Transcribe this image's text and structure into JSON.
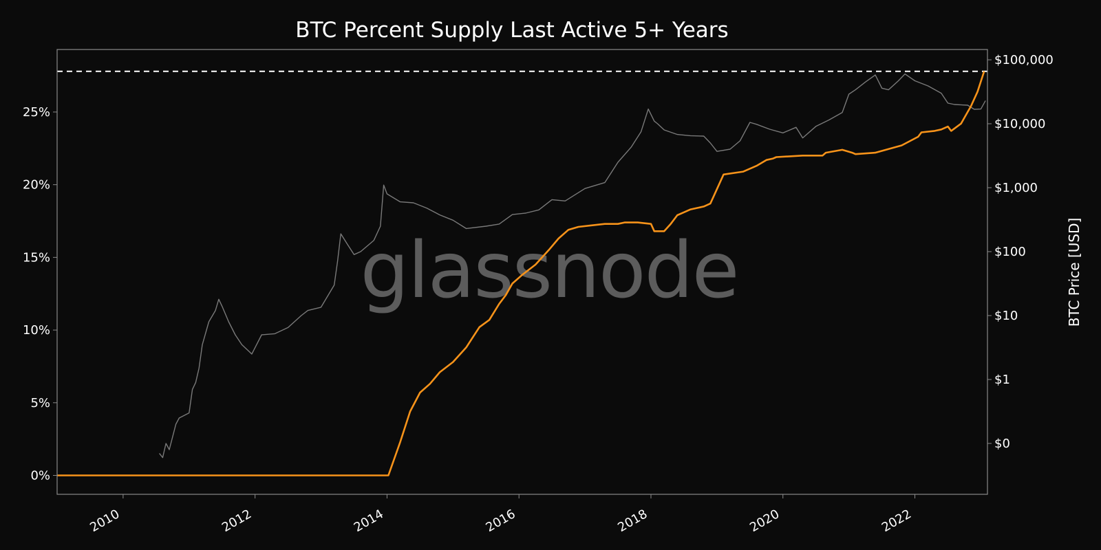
{
  "chart_data": {
    "type": "line",
    "title": "BTC Percent Supply Last Active 5+ Years",
    "xlabel": "",
    "ylabel_left": "",
    "ylabel_right": "BTC Price [USD]",
    "watermark": "glassnode",
    "x_ticks": [
      "2010",
      "2012",
      "2014",
      "2016",
      "2018",
      "2020",
      "2022"
    ],
    "y_left_ticks": [
      "0%",
      "5%",
      "10%",
      "15%",
      "20%",
      "25%"
    ],
    "y_right_ticks": [
      "$0",
      "$1",
      "$10",
      "$100",
      "$1,000",
      "$10,000",
      "$100,000"
    ],
    "y_left_range": [
      -1.3,
      29.3
    ],
    "y_right_scale": "log",
    "x_range": [
      2009.0,
      2023.1
    ],
    "grid": false,
    "series": [
      {
        "name": "",
        "axis": "left",
        "color": "#f7931a",
        "x": [
          2009.0,
          2014.02,
          2014.2,
          2014.35,
          2014.5,
          2014.65,
          2014.8,
          2015.0,
          2015.2,
          2015.3,
          2015.4,
          2015.55,
          2015.7,
          2015.8,
          2015.9,
          2016.05,
          2016.25,
          2016.45,
          2016.6,
          2016.75,
          2016.9,
          2017.1,
          2017.3,
          2017.5,
          2017.6,
          2017.8,
          2018.0,
          2018.05,
          2018.2,
          2018.3,
          2018.4,
          2018.5,
          2018.6,
          2018.7,
          2018.8,
          2018.9,
          2018.95,
          2019.1,
          2019.4,
          2019.6,
          2019.75,
          2019.85,
          2019.9,
          2020.3,
          2020.6,
          2020.65,
          2020.9,
          2021.05,
          2021.1,
          2021.4,
          2021.8,
          2022.05,
          2022.1,
          2022.3,
          2022.4,
          2022.5,
          2022.55,
          2022.7,
          2022.8,
          2022.85,
          2022.95,
          2023.05
        ],
        "y": [
          0.0,
          0.0,
          2.3,
          4.4,
          5.7,
          6.3,
          7.1,
          7.8,
          8.8,
          9.5,
          10.2,
          10.7,
          11.8,
          12.4,
          13.2,
          13.8,
          14.5,
          15.5,
          16.3,
          16.9,
          17.1,
          17.2,
          17.3,
          17.3,
          17.4,
          17.4,
          17.3,
          16.8,
          16.8,
          17.3,
          17.9,
          18.1,
          18.3,
          18.4,
          18.5,
          18.7,
          19.2,
          20.7,
          20.9,
          21.3,
          21.7,
          21.8,
          21.9,
          22.0,
          22.0,
          22.2,
          22.4,
          22.2,
          22.1,
          22.2,
          22.7,
          23.3,
          23.6,
          23.7,
          23.8,
          24.0,
          23.7,
          24.2,
          25.0,
          25.4,
          26.4,
          27.8
        ]
      },
      {
        "name": "",
        "axis": "right",
        "color": "#7a7a7a",
        "x": [
          2010.55,
          2010.6,
          2010.65,
          2010.7,
          2010.8,
          2010.85,
          2011.0,
          2011.05,
          2011.1,
          2011.15,
          2011.2,
          2011.3,
          2011.4,
          2011.45,
          2011.5,
          2011.6,
          2011.7,
          2011.8,
          2011.9,
          2011.95,
          2012.1,
          2012.3,
          2012.5,
          2012.7,
          2012.8,
          2013.0,
          2013.2,
          2013.25,
          2013.3,
          2013.4,
          2013.5,
          2013.6,
          2013.8,
          2013.9,
          2013.95,
          2014.0,
          2014.2,
          2014.4,
          2014.6,
          2014.8,
          2015.0,
          2015.2,
          2015.5,
          2015.7,
          2015.9,
          2016.1,
          2016.3,
          2016.5,
          2016.7,
          2017.0,
          2017.3,
          2017.5,
          2017.7,
          2017.85,
          2017.96,
          2018.05,
          2018.1,
          2018.2,
          2018.4,
          2018.6,
          2018.8,
          2018.9,
          2019.0,
          2019.2,
          2019.35,
          2019.5,
          2019.6,
          2019.8,
          2020.0,
          2020.2,
          2020.3,
          2020.5,
          2020.7,
          2020.9,
          2021.0,
          2021.1,
          2021.25,
          2021.4,
          2021.5,
          2021.6,
          2021.75,
          2021.85,
          2022.0,
          2022.2,
          2022.4,
          2022.5,
          2022.6,
          2022.8,
          2022.9,
          2023.0,
          2023.07
        ],
        "y": [
          0.07,
          0.06,
          0.1,
          0.08,
          0.2,
          0.25,
          0.3,
          0.7,
          0.9,
          1.5,
          3.5,
          8,
          12,
          18,
          14,
          8,
          5,
          3.5,
          2.8,
          2.5,
          5,
          5.2,
          6.5,
          10,
          12,
          13.5,
          30,
          70,
          190,
          130,
          90,
          100,
          150,
          250,
          1100,
          800,
          600,
          580,
          480,
          375,
          310,
          230,
          250,
          270,
          380,
          400,
          450,
          650,
          620,
          970,
          1200,
          2500,
          4300,
          7500,
          17000,
          11000,
          10000,
          8000,
          6800,
          6500,
          6400,
          5000,
          3700,
          4000,
          5400,
          10500,
          9800,
          8200,
          7200,
          8800,
          6000,
          9100,
          11500,
          15000,
          29000,
          34000,
          45000,
          58000,
          36000,
          34000,
          47000,
          60000,
          47000,
          39000,
          30000,
          21000,
          20000,
          19500,
          16800,
          17000,
          23000
        ]
      }
    ],
    "reference_line": {
      "axis": "left",
      "y": 27.8,
      "style": "dashed",
      "color": "#ffffff"
    }
  }
}
